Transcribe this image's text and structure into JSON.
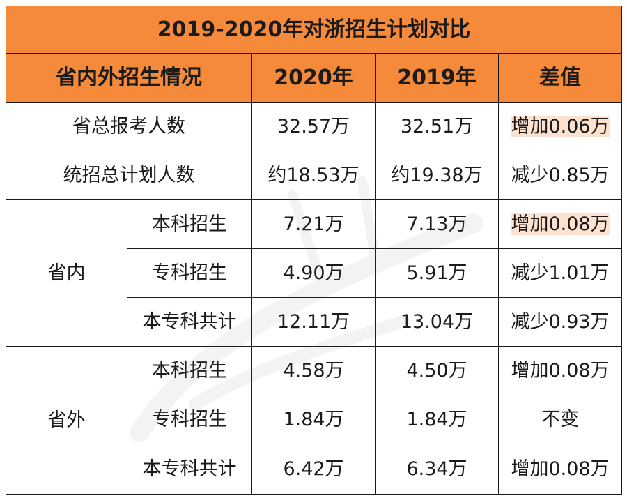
{
  "title": "2019-2020年对浙招生计划对比",
  "headers": {
    "category": "省内外招生情况",
    "y2020": "2020年",
    "y2019": "2019年",
    "diff": "差值"
  },
  "rows": {
    "applicants": {
      "label": "省总报考人数",
      "v2020": "32.57万",
      "v2019": "32.51万",
      "diff": "增加0.06万"
    },
    "plan_total": {
      "label": "统招总计划人数",
      "v2020": "约18.53万",
      "v2019": "约19.38万",
      "diff": "减少0.85万"
    }
  },
  "groups": {
    "inside": {
      "label": "省内",
      "rows": [
        {
          "label": "本科招生",
          "v2020": "7.21万",
          "v2019": "7.13万",
          "diff": "增加0.08万"
        },
        {
          "label": "专科招生",
          "v2020": "4.90万",
          "v2019": "5.91万",
          "diff": "减少1.01万"
        },
        {
          "label": "本专科共计",
          "v2020": "12.11万",
          "v2019": "13.04万",
          "diff": "减少0.93万"
        }
      ]
    },
    "outside": {
      "label": "省外",
      "rows": [
        {
          "label": "本科招生",
          "v2020": "4.58万",
          "v2019": "4.50万",
          "diff": "增加0.08万"
        },
        {
          "label": "专科招生",
          "v2020": "1.84万",
          "v2019": "1.84万",
          "diff": "不变"
        },
        {
          "label": "本专科共计",
          "v2020": "6.42万",
          "v2019": "6.34万",
          "diff": "增加0.08万"
        }
      ]
    }
  },
  "colors": {
    "header_bg": "#f58a3a",
    "diff_text": "#e8202a",
    "border": "#1a1a1a"
  }
}
